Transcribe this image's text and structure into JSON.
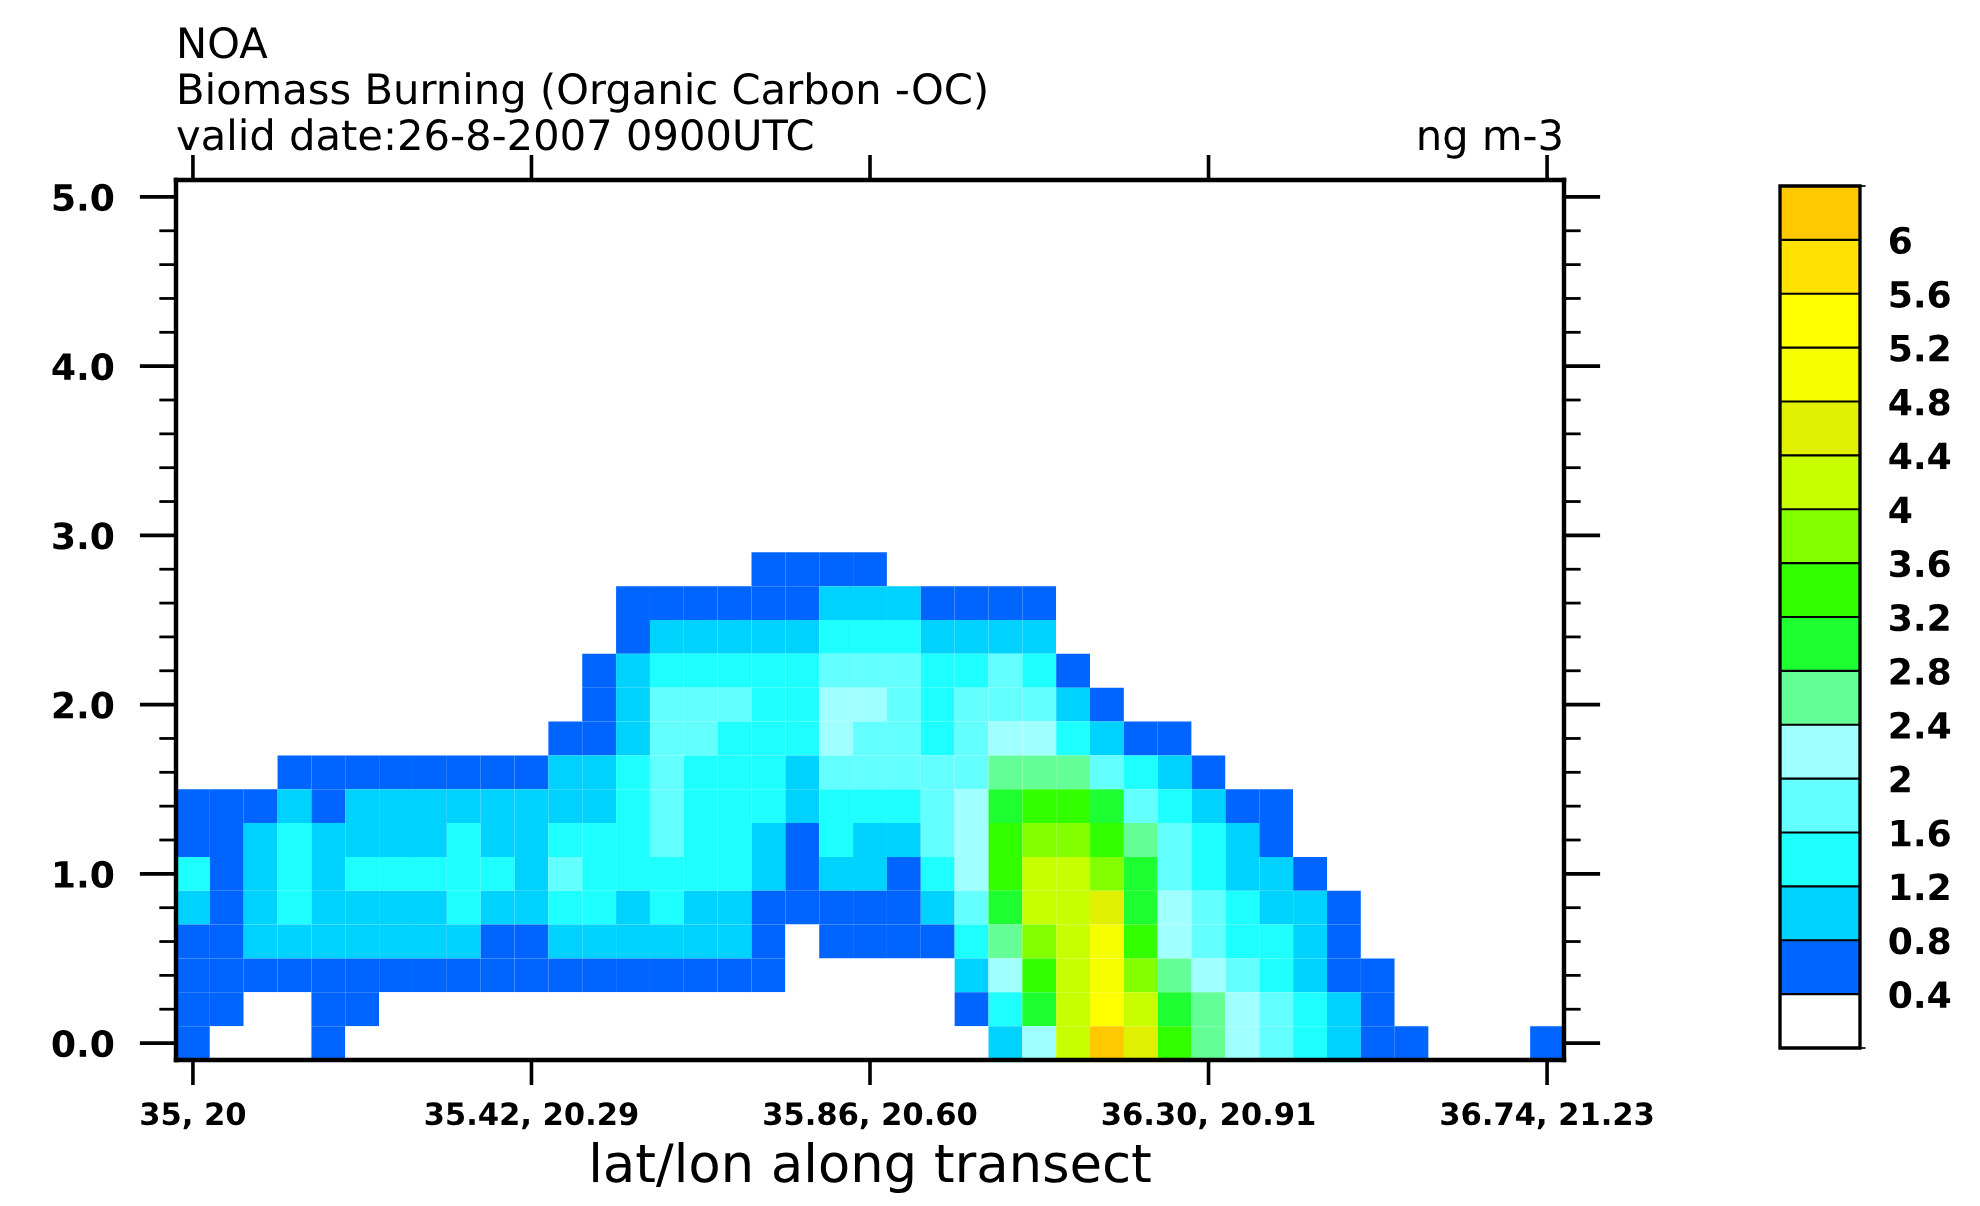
{
  "chart_data": {
    "type": "heatmap",
    "title": "NOA",
    "subtitle": "Biomass Burning (Organic Carbon -OC)",
    "annotations": [
      "valid date:26-8-2007 0900UTC"
    ],
    "xlabel": "lat/lon along transect",
    "clabel": "ng m-3",
    "categories": [
      "35, 20",
      null,
      null,
      null,
      null,
      null,
      null,
      null,
      null,
      null,
      "35.42, 20.29",
      null,
      null,
      null,
      null,
      null,
      null,
      null,
      null,
      null,
      "35.86, 20.60",
      null,
      null,
      null,
      null,
      null,
      null,
      null,
      null,
      null,
      "36.30, 20.91",
      null,
      null,
      null,
      null,
      null,
      null,
      null,
      null,
      null,
      "36.74, 21.23"
    ],
    "y_categories": [
      "5.0",
      null,
      null,
      null,
      null,
      "4.0",
      null,
      null,
      null,
      null,
      "3.0",
      null,
      null,
      null,
      null,
      "2.0",
      null,
      null,
      null,
      null,
      "1.0",
      null,
      null,
      null,
      null,
      "0.0"
    ],
    "colors": [
      "#ffffff",
      "#0064ff",
      "#00d2ff",
      "#1effff",
      "#64ffff",
      "#a0ffff",
      "#64ff96",
      "#1eff32",
      "#32ff00",
      "#82ff00",
      "#c8ff00",
      "#e1f000",
      "#f5ff00",
      "#ffff00",
      "#ffe100",
      "#ffc800"
    ],
    "clim": [
      0,
      6.4
    ],
    "cticks": [
      0.4,
      0.8,
      1.2,
      1.6,
      2,
      2.4,
      2.8,
      3.2,
      3.6,
      4,
      4.4,
      4.8,
      5.2,
      5.6,
      6
    ],
    "cells": [
      [
        0,
        0,
        0,
        0,
        0,
        0,
        0,
        0,
        0,
        0,
        0,
        0,
        0,
        0,
        0,
        0,
        0,
        0,
        0,
        0,
        0,
        0,
        0,
        0,
        0,
        0,
        0,
        0,
        0,
        0,
        0,
        0,
        0,
        0,
        0,
        0,
        0,
        0,
        0,
        0,
        0
      ],
      [
        0,
        0,
        0,
        0,
        0,
        0,
        0,
        0,
        0,
        0,
        0,
        0,
        0,
        0,
        0,
        0,
        0,
        0,
        0,
        0,
        0,
        0,
        0,
        0,
        0,
        0,
        0,
        0,
        0,
        0,
        0,
        0,
        0,
        0,
        0,
        0,
        0,
        0,
        0,
        0,
        0
      ],
      [
        0,
        0,
        0,
        0,
        0,
        0,
        0,
        0,
        0,
        0,
        0,
        0,
        0,
        0,
        0,
        0,
        0,
        0,
        0,
        0,
        0,
        0,
        0,
        0,
        0,
        0,
        0,
        0,
        0,
        0,
        0,
        0,
        0,
        0,
        0,
        0,
        0,
        0,
        0,
        0,
        0
      ],
      [
        0,
        0,
        0,
        0,
        0,
        0,
        0,
        0,
        0,
        0,
        0,
        0,
        0,
        0,
        0,
        0,
        0,
        0,
        0,
        0,
        0,
        0,
        0,
        0,
        0,
        0,
        0,
        0,
        0,
        0,
        0,
        0,
        0,
        0,
        0,
        0,
        0,
        0,
        0,
        0,
        0
      ],
      [
        0,
        0,
        0,
        0,
        0,
        0,
        0,
        0,
        0,
        0,
        0,
        0,
        0,
        0,
        0,
        0,
        0,
        0,
        0,
        0,
        0,
        0,
        0,
        0,
        0,
        0,
        0,
        0,
        0,
        0,
        0,
        0,
        0,
        0,
        0,
        0,
        0,
        0,
        0,
        0,
        0
      ],
      [
        0,
        0,
        0,
        0,
        0,
        0,
        0,
        0,
        0,
        0,
        0,
        0,
        0,
        0,
        0,
        0,
        0,
        0,
        0,
        0,
        0,
        0,
        0,
        0,
        0,
        0,
        0,
        0,
        0,
        0,
        0,
        0,
        0,
        0,
        0,
        0,
        0,
        0,
        0,
        0,
        0
      ],
      [
        0,
        0,
        0,
        0,
        0,
        0,
        0,
        0,
        0,
        0,
        0,
        0,
        0,
        0,
        0,
        0,
        0,
        0,
        0,
        0,
        0,
        0,
        0,
        0,
        0,
        0,
        0,
        0,
        0,
        0,
        0,
        0,
        0,
        0,
        0,
        0,
        0,
        0,
        0,
        0,
        0
      ],
      [
        0,
        0,
        0,
        0,
        0,
        0,
        0,
        0,
        0,
        0,
        0,
        0,
        0,
        0,
        0,
        0,
        0,
        0,
        0,
        0,
        0,
        0,
        0,
        0,
        0,
        0,
        0,
        0,
        0,
        0,
        0,
        0,
        0,
        0,
        0,
        0,
        0,
        0,
        0,
        0,
        0
      ],
      [
        0,
        0,
        0,
        0,
        0,
        0,
        0,
        0,
        0,
        0,
        0,
        0,
        0,
        0,
        0,
        0,
        0,
        0,
        0,
        0,
        0,
        0,
        0,
        0,
        0,
        0,
        0,
        0,
        0,
        0,
        0,
        0,
        0,
        0,
        0,
        0,
        0,
        0,
        0,
        0,
        0
      ],
      [
        0,
        0,
        0,
        0,
        0,
        0,
        0,
        0,
        0,
        0,
        0,
        0,
        0,
        0,
        0,
        0,
        0,
        0,
        0,
        0,
        0,
        0,
        0,
        0,
        0,
        0,
        0,
        0,
        0,
        0,
        0,
        0,
        0,
        0,
        0,
        0,
        0,
        0,
        0,
        0,
        0
      ],
      [
        0,
        0,
        0,
        0,
        0,
        0,
        0,
        0,
        0,
        0,
        0,
        0,
        0,
        0,
        0,
        0,
        0,
        0,
        0,
        0,
        0,
        0,
        0,
        0,
        0,
        0,
        0,
        0,
        0,
        0,
        0,
        0,
        0,
        0,
        0,
        0,
        0,
        0,
        0,
        0,
        0
      ],
      [
        0,
        0,
        0,
        0,
        0,
        0,
        0,
        0,
        0,
        0,
        0,
        0,
        0,
        0,
        0,
        0,
        0,
        0.6,
        0.6,
        0.6,
        0.6,
        0,
        0,
        0,
        0,
        0,
        0,
        0,
        0,
        0,
        0,
        0,
        0,
        0,
        0,
        0,
        0,
        0,
        0,
        0,
        0
      ],
      [
        0,
        0,
        0,
        0,
        0,
        0,
        0,
        0,
        0,
        0,
        0,
        0,
        0,
        0.6,
        0.6,
        0.6,
        0.6,
        0.6,
        0.6,
        1.0,
        1.0,
        1.0,
        0.6,
        0.6,
        0.6,
        0.6,
        0,
        0,
        0,
        0,
        0,
        0,
        0,
        0,
        0,
        0,
        0,
        0,
        0,
        0,
        0
      ],
      [
        0,
        0,
        0,
        0,
        0,
        0,
        0,
        0,
        0,
        0,
        0,
        0,
        0,
        0.6,
        1.0,
        1.0,
        1.0,
        1.0,
        1.0,
        1.4,
        1.4,
        1.4,
        1.0,
        1.0,
        1.0,
        1.0,
        0,
        0,
        0,
        0,
        0,
        0,
        0,
        0,
        0,
        0,
        0,
        0,
        0,
        0,
        0
      ],
      [
        0,
        0,
        0,
        0,
        0,
        0,
        0,
        0,
        0,
        0,
        0,
        0,
        0.6,
        1.0,
        1.4,
        1.4,
        1.4,
        1.4,
        1.4,
        1.8,
        1.8,
        1.8,
        1.4,
        1.4,
        1.8,
        1.4,
        0.6,
        0,
        0,
        0,
        0,
        0,
        0,
        0,
        0,
        0,
        0,
        0,
        0,
        0,
        0
      ],
      [
        0,
        0,
        0,
        0,
        0,
        0,
        0,
        0,
        0,
        0,
        0,
        0,
        0.6,
        1.0,
        1.8,
        1.8,
        1.8,
        1.4,
        1.4,
        2.2,
        2.2,
        1.8,
        1.4,
        1.8,
        1.8,
        1.8,
        1.0,
        0.6,
        0,
        0,
        0,
        0,
        0,
        0,
        0,
        0,
        0,
        0,
        0,
        0,
        0
      ],
      [
        0,
        0,
        0,
        0,
        0,
        0,
        0,
        0,
        0,
        0,
        0,
        0.6,
        0.6,
        1.0,
        1.8,
        1.8,
        1.4,
        1.4,
        1.4,
        2.2,
        1.8,
        1.8,
        1.4,
        1.8,
        2.2,
        2.2,
        1.4,
        1.0,
        0.6,
        0.6,
        0,
        0,
        0,
        0,
        0,
        0,
        0,
        0,
        0,
        0,
        0
      ],
      [
        0,
        0,
        0,
        0.6,
        0.6,
        0.6,
        0.6,
        0.6,
        0.6,
        0.6,
        0.6,
        1.0,
        1.0,
        1.4,
        1.8,
        1.4,
        1.4,
        1.4,
        1.0,
        1.8,
        1.8,
        1.8,
        1.8,
        1.8,
        2.6,
        2.6,
        2.6,
        1.8,
        1.4,
        1.0,
        0.6,
        0,
        0,
        0,
        0,
        0,
        0,
        0,
        0,
        0,
        0
      ],
      [
        0.6,
        0.6,
        0.6,
        1.0,
        0.6,
        1.0,
        1.0,
        1.0,
        1.0,
        1.0,
        1.0,
        1.0,
        1.0,
        1.4,
        1.8,
        1.4,
        1.4,
        1.4,
        1.0,
        1.4,
        1.4,
        1.4,
        1.8,
        2.2,
        3.0,
        3.4,
        3.4,
        3.0,
        1.8,
        1.4,
        1.0,
        0.6,
        0.6,
        0,
        0,
        0,
        0,
        0,
        0,
        0,
        0
      ],
      [
        0.6,
        0.6,
        1.0,
        1.4,
        1.0,
        1.0,
        1.0,
        1.0,
        1.4,
        1.0,
        1.0,
        1.4,
        1.4,
        1.4,
        1.8,
        1.4,
        1.4,
        1.0,
        0.6,
        1.4,
        1.0,
        1.0,
        1.8,
        2.2,
        3.4,
        3.8,
        3.8,
        3.4,
        2.6,
        1.8,
        1.4,
        1.0,
        0.6,
        0,
        0,
        0,
        0,
        0,
        0,
        0,
        0
      ],
      [
        1.4,
        0.6,
        1.0,
        1.4,
        1.0,
        1.4,
        1.4,
        1.4,
        1.4,
        1.4,
        1.0,
        1.8,
        1.4,
        1.4,
        1.4,
        1.4,
        1.4,
        1.0,
        0.6,
        1.0,
        1.0,
        0.6,
        1.4,
        2.2,
        3.4,
        4.2,
        4.2,
        3.8,
        3.0,
        1.8,
        1.4,
        1.0,
        1.0,
        0.6,
        0,
        0,
        0,
        0,
        0,
        0,
        0
      ],
      [
        1.0,
        0.6,
        1.0,
        1.4,
        1.0,
        1.0,
        1.0,
        1.0,
        1.4,
        1.0,
        1.0,
        1.4,
        1.4,
        1.0,
        1.4,
        1.0,
        1.0,
        0.6,
        0.6,
        0.6,
        0.6,
        0.6,
        1.0,
        1.8,
        3.0,
        4.2,
        4.2,
        4.6,
        3.0,
        2.2,
        1.8,
        1.4,
        1.0,
        1.0,
        0.6,
        0,
        0,
        0,
        0,
        0,
        0
      ],
      [
        0.6,
        0.6,
        1.0,
        1.0,
        1.0,
        1.0,
        1.0,
        1.0,
        1.0,
        0.6,
        0.6,
        1.0,
        1.0,
        1.0,
        1.0,
        1.0,
        1.0,
        0.6,
        0,
        0.6,
        0.6,
        0.6,
        0.6,
        1.4,
        2.6,
        3.8,
        4.2,
        5.0,
        3.4,
        2.2,
        1.8,
        1.4,
        1.4,
        1.0,
        0.6,
        0,
        0,
        0,
        0,
        0,
        0
      ],
      [
        0.6,
        0.6,
        0.6,
        0.6,
        0.6,
        0.6,
        0.6,
        0.6,
        0.6,
        0.6,
        0.6,
        0.6,
        0.6,
        0.6,
        0.6,
        0.6,
        0.6,
        0.6,
        0,
        0,
        0,
        0,
        0,
        1.0,
        2.2,
        3.4,
        4.2,
        5.0,
        3.8,
        2.6,
        2.2,
        1.8,
        1.4,
        1.0,
        0.6,
        0.6,
        0,
        0,
        0,
        0,
        0
      ],
      [
        0.6,
        0.6,
        0,
        0,
        0.6,
        0.6,
        0,
        0,
        0,
        0,
        0,
        0,
        0,
        0,
        0,
        0,
        0,
        0,
        0,
        0,
        0,
        0,
        0,
        0.6,
        1.4,
        3.0,
        4.2,
        5.4,
        4.2,
        3.0,
        2.6,
        2.2,
        1.8,
        1.4,
        1.0,
        0.6,
        0,
        0,
        0,
        0,
        0
      ],
      [
        0.6,
        0,
        0,
        0,
        0.6,
        0,
        0,
        0,
        0,
        0,
        0,
        0,
        0,
        0,
        0,
        0,
        0,
        0,
        0,
        0,
        0,
        0,
        0,
        0,
        1.0,
        2.2,
        4.2,
        6.2,
        4.6,
        3.4,
        2.6,
        2.2,
        1.8,
        1.4,
        1.0,
        0.6,
        0.6,
        0,
        0,
        0,
        0.6
      ]
    ]
  }
}
